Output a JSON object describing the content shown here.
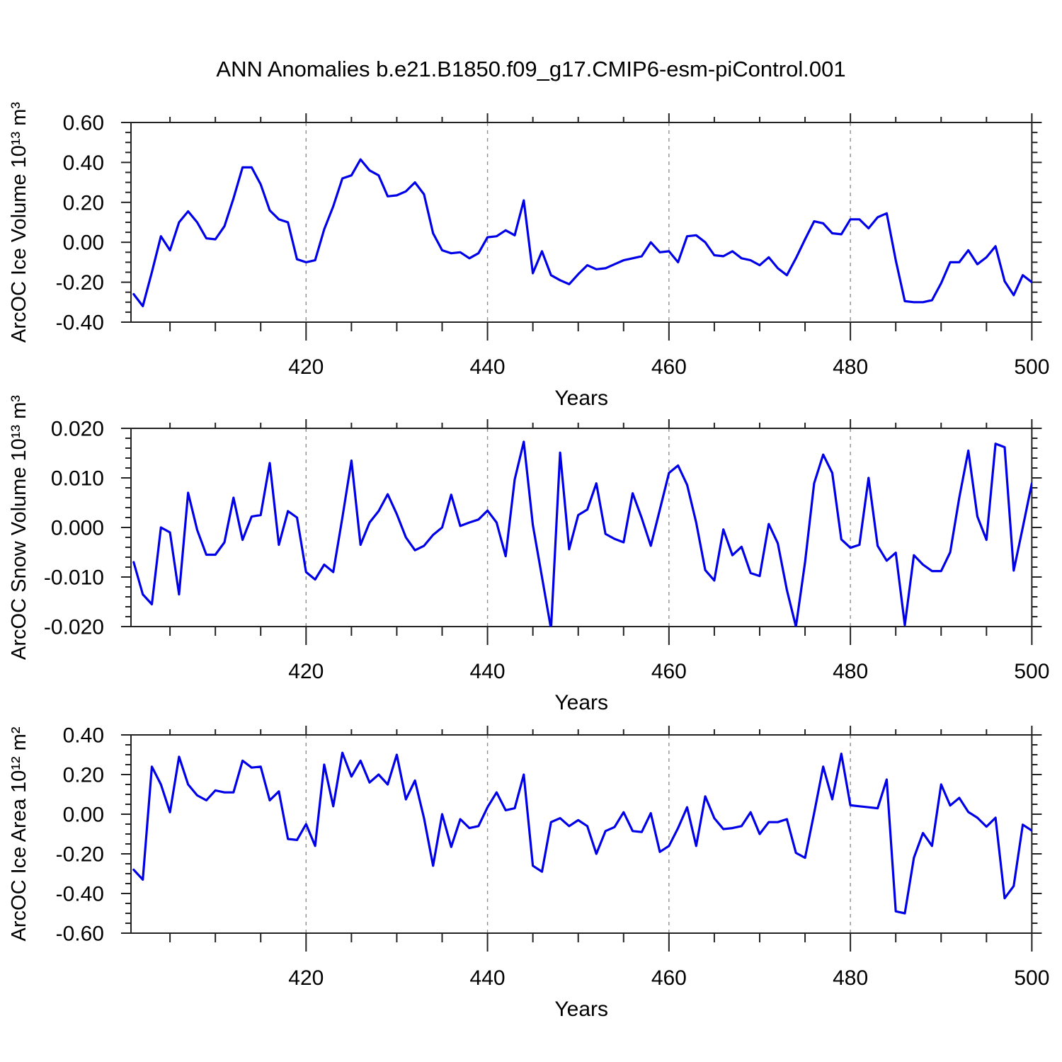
{
  "title": "ANN Anomalies b.e21.B1850.f09_g17.CMIP6-esm-piControl.001",
  "colors": {
    "line": "#0000e8",
    "frame": "#222222",
    "grid": "#8f8f8f",
    "text": "#000000"
  },
  "x_axis": {
    "label": "Years",
    "range": [
      400.7,
      500
    ],
    "major_ticks": [
      420,
      440,
      460,
      480,
      500
    ],
    "major_tick_labels": [
      "420",
      "440",
      "460",
      "480",
      "500"
    ],
    "minor_tick_step": 5,
    "gridlines": [
      420,
      440,
      460,
      480
    ]
  },
  "chart_data": [
    {
      "type": "line",
      "id": "ice-volume",
      "ylabel": "ArcOC Ice Volume 10¹³ m³",
      "xlabel": "Years",
      "ylim": [
        -0.4,
        0.6
      ],
      "ytick_values": [
        0.6,
        0.4,
        0.2,
        0.0,
        -0.2,
        -0.4
      ],
      "ytick_labels": [
        "0.60",
        "0.40",
        "0.20",
        "0.00",
        "-0.20",
        "-0.40"
      ],
      "yminor_step": 0.05,
      "x_start": 401,
      "values": [
        -0.26,
        -0.32,
        -0.15,
        0.03,
        -0.04,
        0.1,
        0.155,
        0.1,
        0.02,
        0.015,
        0.08,
        0.22,
        0.375,
        0.375,
        0.29,
        0.16,
        0.115,
        0.1,
        -0.085,
        -0.1,
        -0.09,
        0.065,
        0.18,
        0.32,
        0.335,
        0.415,
        0.36,
        0.335,
        0.23,
        0.235,
        0.255,
        0.3,
        0.24,
        0.045,
        -0.04,
        -0.055,
        -0.05,
        -0.08,
        -0.055,
        0.025,
        0.03,
        0.06,
        0.035,
        0.21,
        -0.155,
        -0.045,
        -0.165,
        -0.19,
        -0.21,
        -0.16,
        -0.115,
        -0.135,
        -0.13,
        -0.11,
        -0.09,
        -0.08,
        -0.07,
        0.0,
        -0.05,
        -0.045,
        -0.1,
        0.03,
        0.035,
        0.0,
        -0.065,
        -0.07,
        -0.045,
        -0.08,
        -0.09,
        -0.115,
        -0.075,
        -0.13,
        -0.165,
        -0.08,
        0.015,
        0.105,
        0.095,
        0.045,
        0.04,
        0.115,
        0.115,
        0.07,
        0.125,
        0.145,
        -0.09,
        -0.295,
        -0.3,
        -0.3,
        -0.29,
        -0.205,
        -0.1,
        -0.1,
        -0.04,
        -0.11,
        -0.075,
        -0.02,
        -0.195,
        -0.265,
        -0.165,
        -0.2
      ]
    },
    {
      "type": "line",
      "id": "snow-volume",
      "ylabel": "ArcOC Snow Volume 10¹³ m³",
      "xlabel": "Years",
      "ylim": [
        -0.02,
        0.02
      ],
      "ytick_values": [
        0.02,
        0.01,
        0.0,
        -0.01,
        -0.02
      ],
      "ytick_labels": [
        "0.020",
        "0.010",
        "0.000",
        "-0.010",
        "-0.020"
      ],
      "yminor_step": 0.002,
      "x_start": 401,
      "values": [
        -0.007,
        -0.0135,
        -0.0155,
        0.0,
        -0.001,
        -0.0135,
        0.007,
        -0.0005,
        -0.0055,
        -0.0055,
        -0.003,
        0.006,
        -0.0025,
        0.0022,
        0.0025,
        0.013,
        -0.0035,
        0.0033,
        0.002,
        -0.009,
        -0.0105,
        -0.0075,
        -0.009,
        0.002,
        0.0135,
        -0.0035,
        0.001,
        0.0033,
        0.0067,
        0.0027,
        -0.002,
        -0.0046,
        -0.0037,
        -0.0015,
        0.0,
        0.0066,
        0.0003,
        0.001,
        0.0016,
        0.0034,
        0.001,
        -0.0058,
        0.0097,
        0.0173,
        0.0005,
        -0.01,
        -0.0205,
        0.0151,
        -0.0044,
        0.0025,
        0.0036,
        0.0089,
        -0.0013,
        -0.0023,
        -0.003,
        0.0069,
        0.0019,
        -0.0037,
        0.0036,
        0.011,
        0.0125,
        0.0086,
        0.001,
        -0.0086,
        -0.0107,
        -0.0004,
        -0.0056,
        -0.0039,
        -0.0092,
        -0.0098,
        0.0007,
        -0.0032,
        -0.0126,
        -0.02,
        -0.007,
        0.0089,
        0.0147,
        0.011,
        -0.0024,
        -0.0041,
        -0.0035,
        0.01,
        -0.0037,
        -0.0067,
        -0.0051,
        -0.0197,
        -0.0056,
        -0.0075,
        -0.0088,
        -0.0088,
        -0.005,
        0.006,
        0.0155,
        0.0022,
        -0.0025,
        0.0169,
        0.0162,
        -0.0087,
        0.0,
        0.0089
      ]
    },
    {
      "type": "line",
      "id": "ice-area",
      "ylabel": "ArcOC Ice Area 10¹² m²",
      "xlabel": "Years",
      "ylim": [
        -0.6,
        0.4
      ],
      "ytick_values": [
        0.4,
        0.2,
        0.0,
        -0.2,
        -0.4,
        -0.6
      ],
      "ytick_labels": [
        "0.40",
        "0.20",
        "0.00",
        "-0.20",
        "-0.40",
        "-0.60"
      ],
      "yminor_step": 0.05,
      "x_start": 401,
      "values": [
        -0.28,
        -0.33,
        0.24,
        0.15,
        0.01,
        0.29,
        0.15,
        0.095,
        0.07,
        0.12,
        0.11,
        0.11,
        0.27,
        0.235,
        0.24,
        0.07,
        0.115,
        -0.125,
        -0.13,
        -0.05,
        -0.16,
        0.25,
        0.04,
        0.31,
        0.19,
        0.27,
        0.16,
        0.2,
        0.15,
        0.3,
        0.075,
        0.17,
        -0.02,
        -0.26,
        0.0,
        -0.165,
        -0.025,
        -0.07,
        -0.06,
        0.035,
        0.11,
        0.02,
        0.03,
        0.2,
        -0.26,
        -0.29,
        -0.04,
        -0.02,
        -0.06,
        -0.03,
        -0.06,
        -0.2,
        -0.085,
        -0.065,
        0.01,
        -0.085,
        -0.09,
        0.005,
        -0.19,
        -0.16,
        -0.07,
        0.035,
        -0.16,
        0.09,
        -0.02,
        -0.075,
        -0.07,
        -0.06,
        0.01,
        -0.1,
        -0.04,
        -0.04,
        -0.025,
        -0.195,
        -0.22,
        0.005,
        0.24,
        0.075,
        0.305,
        0.045,
        0.04,
        0.035,
        0.03,
        0.175,
        -0.49,
        -0.5,
        -0.22,
        -0.095,
        -0.16,
        0.15,
        0.044,
        0.082,
        0.011,
        -0.018,
        -0.063,
        -0.018,
        -0.424,
        -0.362,
        -0.053,
        -0.083
      ]
    }
  ]
}
